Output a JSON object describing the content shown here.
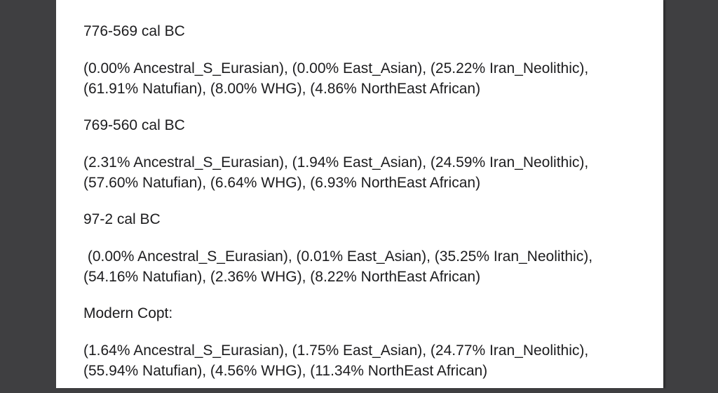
{
  "viewer": {
    "background_color": "#3f3f41",
    "paper_color": "#ffffff",
    "text_color": "#1c1c1e"
  },
  "sections": [
    {
      "heading": "776-569 cal BC",
      "lines": [
        "(0.00% Ancestral_S_Eurasian), (0.00% East_Asian), (25.22% Iran_Neolithic),",
        "(61.91% Natufian), (8.00% WHG), (4.86% NorthEast African)"
      ]
    },
    {
      "heading": "769-560 cal BC",
      "lines": [
        "(2.31% Ancestral_S_Eurasian), (1.94% East_Asian), (24.59% Iran_Neolithic),",
        "(57.60% Natufian), (6.64% WHG), (6.93% NorthEast African)"
      ]
    },
    {
      "heading": "97-2 cal BC",
      "lines": [
        " (0.00% Ancestral_S_Eurasian), (0.01% East_Asian), (35.25% Iran_Neolithic),",
        "(54.16% Natufian), (2.36% WHG), (8.22% NorthEast African)"
      ]
    },
    {
      "heading": "Modern Copt:",
      "lines": [
        "(1.64% Ancestral_S_Eurasian), (1.75% East_Asian), (24.77% Iran_Neolithic),",
        "(55.94% Natufian), (4.56% WHG), (11.34% NorthEast African)"
      ]
    }
  ]
}
